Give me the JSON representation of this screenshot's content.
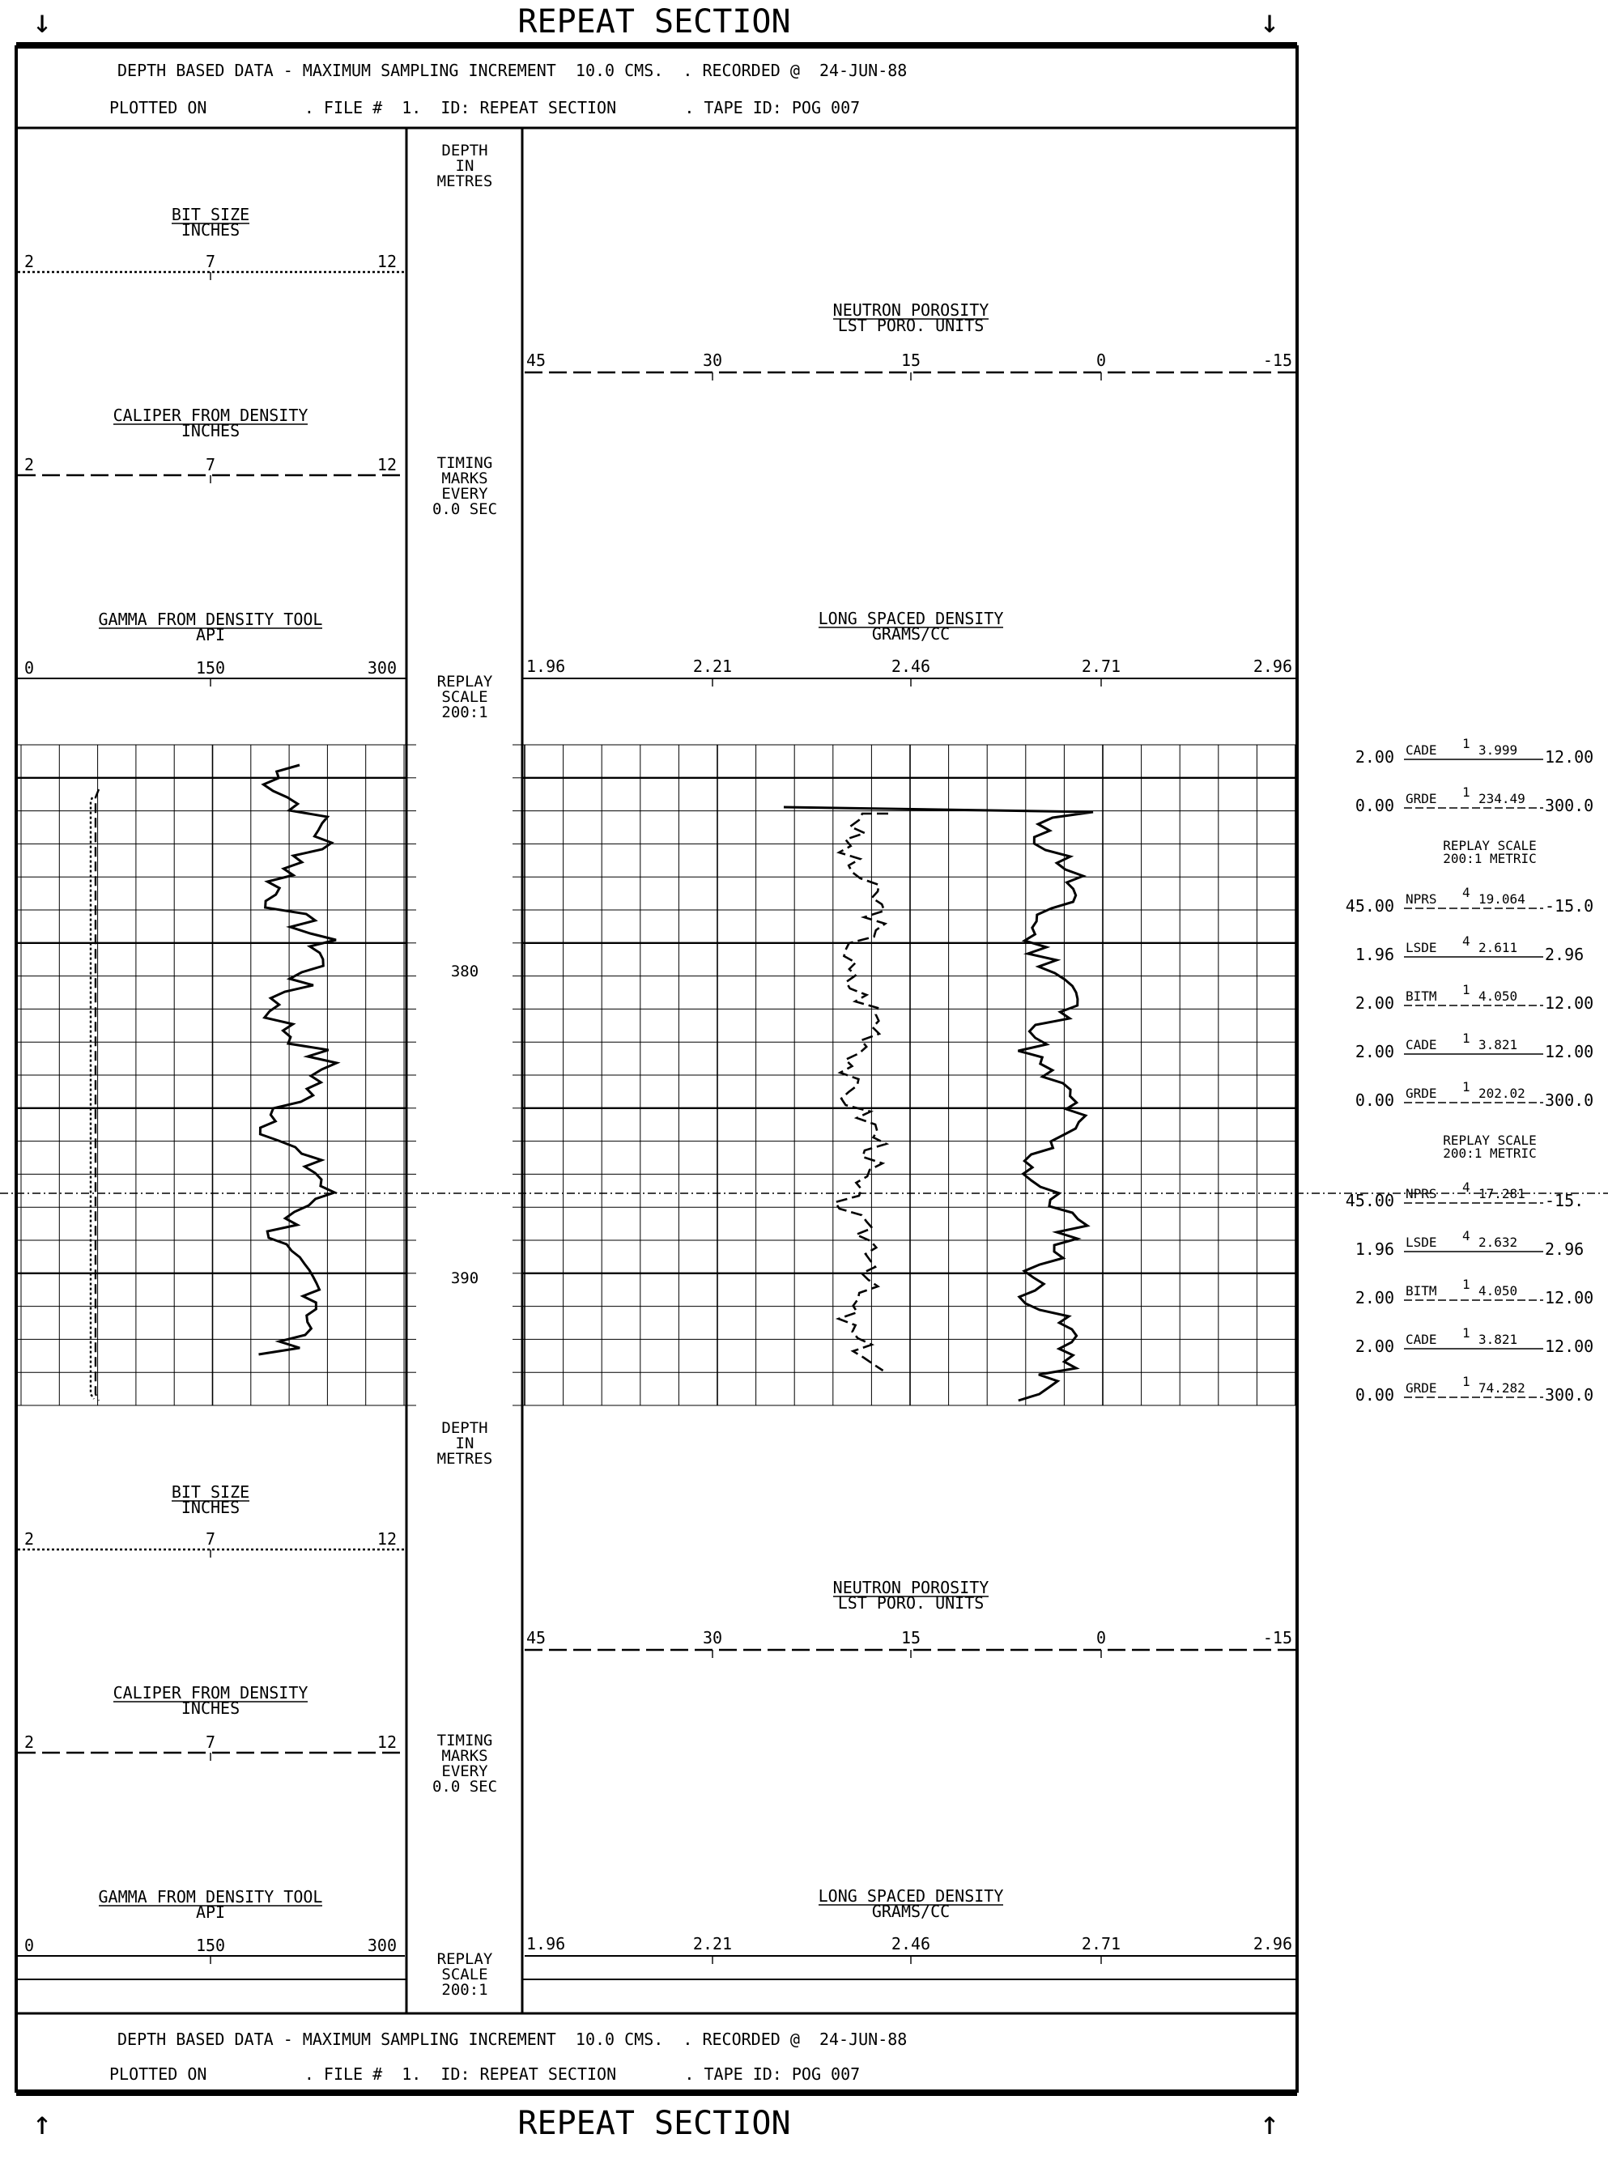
{
  "header": {
    "title": "REPEAT SECTION",
    "line1": "DEPTH BASED DATA - MAXIMUM SAMPLING INCREMENT  10.0 CMS.  . RECORDED @  24-JUN-88",
    "line2": "PLOTTED ON          . FILE #  1.  ID: REPEAT SECTION       . TAPE ID: POG 007"
  },
  "footer": {
    "title": "REPEAT SECTION",
    "line1": "DEPTH BASED DATA - MAXIMUM SAMPLING INCREMENT  10.0 CMS.  . RECORDED @  24-JUN-88",
    "line2": "PLOTTED ON          . FILE #  1.  ID: REPEAT SECTION       . TAPE ID: POG 007"
  },
  "headings": {
    "depth_in_metres": [
      "DEPTH",
      "IN",
      "METRES"
    ],
    "timing_marks": [
      "TIMING",
      "MARKS",
      "EVERY",
      "0.0 SEC"
    ],
    "replay_scale": [
      "REPLAY",
      "SCALE",
      "200:1"
    ]
  },
  "left_tracks": [
    {
      "name": "BIT SIZE",
      "unit": "INCHES",
      "ticks": [
        "2",
        "7",
        "12"
      ],
      "style": "dotted"
    },
    {
      "name": "CALIPER FROM DENSITY",
      "unit": "INCHES",
      "ticks": [
        "2",
        "7",
        "12"
      ],
      "style": "dashed"
    },
    {
      "name": "GAMMA FROM DENSITY TOOL",
      "unit": "API",
      "ticks": [
        "0",
        "150",
        "300"
      ],
      "style": "solid"
    }
  ],
  "right_tracks": [
    {
      "name": "NEUTRON POROSITY",
      "unit": "LST PORO. UNITS",
      "ticks": [
        "45",
        "30",
        "15",
        "0",
        "-15"
      ],
      "style": "dashed"
    },
    {
      "name": "LONG SPACED DENSITY",
      "unit": "GRAMS/CC",
      "ticks": [
        "1.96",
        "2.21",
        "2.46",
        "2.71",
        "2.96"
      ],
      "style": "solid"
    }
  ],
  "depth_labels": [
    "380",
    "390"
  ],
  "side_readouts": [
    {
      "left": "2.00",
      "name": "CADE",
      "sup": "1",
      "value": "3.999",
      "right": "12.00"
    },
    {
      "left": "0.00",
      "name": "GRDE",
      "sup": "1",
      "value": "234.49",
      "right": "300.0"
    },
    {
      "note1": "REPLAY SCALE",
      "note2": "200:1 METRIC"
    },
    {
      "left": "45.00",
      "name": "NPRS",
      "sup": "4",
      "value": "19.064",
      "right": "-15.0"
    },
    {
      "left": "1.96",
      "name": "LSDE",
      "sup": "4",
      "value": "2.611",
      "right": "2.96"
    },
    {
      "left": "2.00",
      "name": "BITM",
      "sup": "1",
      "value": "4.050",
      "right": "12.00"
    },
    {
      "left": "2.00",
      "name": "CADE",
      "sup": "1",
      "value": "3.821",
      "right": "12.00"
    },
    {
      "left": "0.00",
      "name": "GRDE",
      "sup": "1",
      "value": "202.02",
      "right": "300.0"
    },
    {
      "note1": "REPLAY SCALE",
      "note2": "200:1 METRIC"
    },
    {
      "left": "45.00",
      "name": "NPRS",
      "sup": "4",
      "value": "17.281",
      "right": "-15."
    },
    {
      "left": "1.96",
      "name": "LSDE",
      "sup": "4",
      "value": "2.632",
      "right": "2.96"
    },
    {
      "left": "2.00",
      "name": "BITM",
      "sup": "1",
      "value": "4.050",
      "right": "12.00"
    },
    {
      "left": "2.00",
      "name": "CADE",
      "sup": "1",
      "value": "3.821",
      "right": "12.00"
    },
    {
      "left": "0.00",
      "name": "GRDE",
      "sup": "1",
      "value": "74.282",
      "right": "300.0"
    }
  ]
}
